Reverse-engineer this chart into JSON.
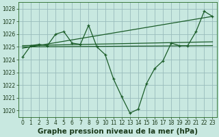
{
  "background_color": "#c8e8e0",
  "grid_color": "#99bbbb",
  "line_color": "#1a5c28",
  "xlabel": "Graphe pression niveau de la mer (hPa)",
  "xlabel_fontsize": 7.5,
  "ylim": [
    1019.5,
    1028.5
  ],
  "xlim": [
    -0.5,
    23.5
  ],
  "yticks": [
    1020,
    1021,
    1022,
    1023,
    1024,
    1025,
    1026,
    1027,
    1028
  ],
  "xticks": [
    0,
    1,
    2,
    3,
    4,
    5,
    6,
    7,
    8,
    9,
    10,
    11,
    12,
    13,
    14,
    15,
    16,
    17,
    18,
    19,
    20,
    21,
    22,
    23
  ],
  "tick_fontsize": 5.5,
  "series": {
    "line1_x": [
      0,
      1,
      2,
      3,
      4,
      5,
      6,
      7,
      8,
      9,
      10,
      11,
      12,
      13,
      14,
      15,
      16,
      17,
      18,
      19,
      20,
      21,
      22,
      23
    ],
    "line1_y": [
      1024.2,
      1025.1,
      1025.2,
      1025.1,
      1026.0,
      1026.2,
      1025.3,
      1025.2,
      1026.7,
      1025.0,
      1024.4,
      1022.5,
      1021.1,
      1019.8,
      1020.1,
      1022.1,
      1023.3,
      1023.9,
      1025.3,
      1025.1,
      1025.1,
      1026.2,
      1027.8,
      1027.4
    ],
    "line2_x": [
      0,
      23
    ],
    "line2_y": [
      1025.1,
      1025.4
    ],
    "line3_x": [
      0,
      23
    ],
    "line3_y": [
      1025.0,
      1025.1
    ],
    "line4_x": [
      0,
      23
    ],
    "line4_y": [
      1024.9,
      1027.4
    ]
  }
}
